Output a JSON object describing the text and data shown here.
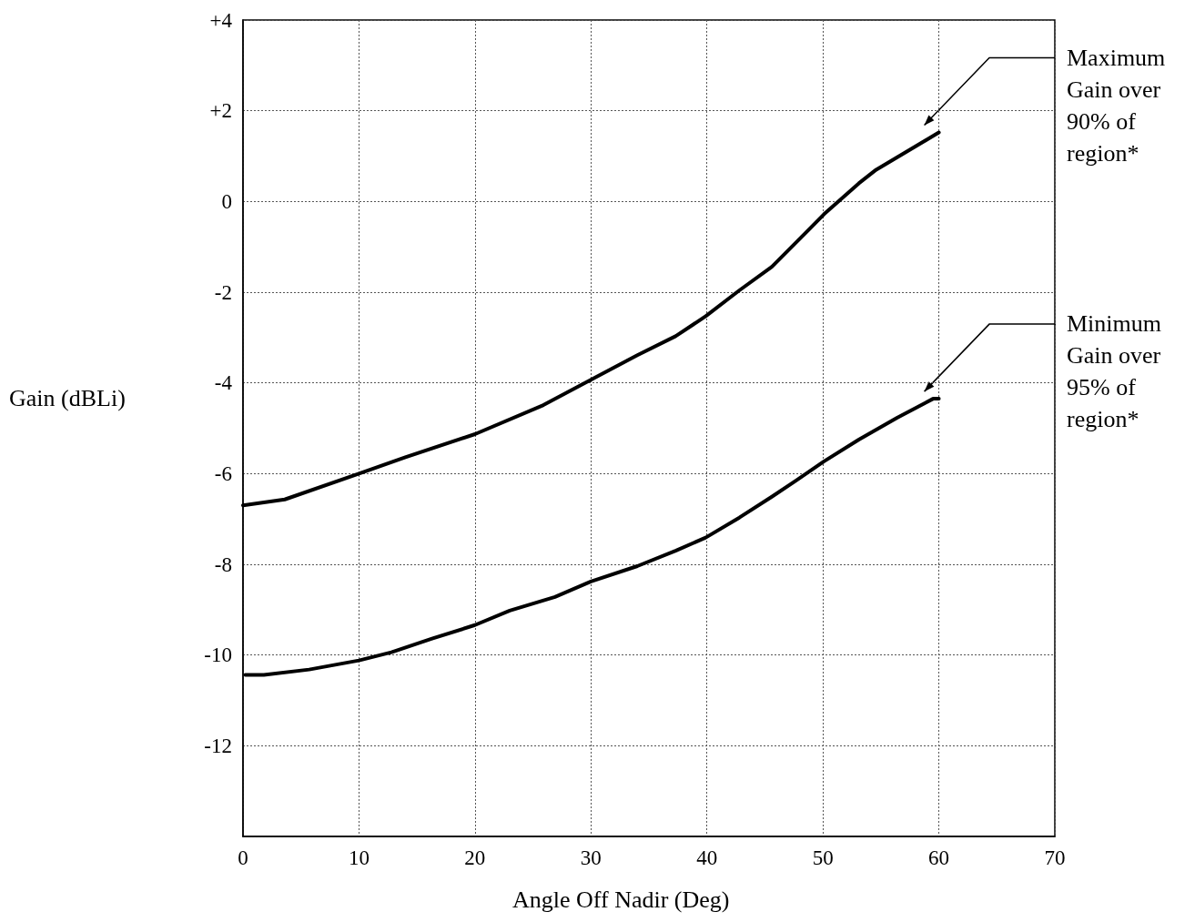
{
  "chart_data": {
    "type": "line",
    "xlabel": "Angle Off Nadir (Deg)",
    "ylabel": "Gain (dBLi)",
    "xlim": [
      0,
      70
    ],
    "xticks": [
      0,
      10,
      20,
      30,
      40,
      50,
      60,
      70
    ],
    "ylim": [
      -14,
      4
    ],
    "yticks": [
      {
        "value": -14,
        "label": null
      },
      -12,
      -10,
      -8,
      -6,
      -4,
      -2,
      0,
      {
        "value": 2,
        "label": "+2"
      },
      {
        "value": 4,
        "label": "+4"
      }
    ],
    "grid": true,
    "marker": "none",
    "line_style": "solid",
    "series": [
      {
        "color": "#000000",
        "x": [
          0,
          3.6,
          10,
          14,
          20,
          25.9,
          30,
          34,
          37.3,
          39.9,
          42.8,
          45.6,
          48.1,
          50.1,
          53.1,
          54.6,
          60
        ],
        "values": [
          -6.7,
          -6.57,
          -6.0,
          -5.64,
          -5.13,
          -4.49,
          -3.93,
          -3.39,
          -2.97,
          -2.53,
          -1.96,
          -1.44,
          -0.8,
          -0.28,
          0.4,
          0.7,
          1.52
        ]
      },
      {
        "color": "#000000",
        "x": [
          0.2,
          1.8,
          5.7,
          10,
          12.8,
          16.3,
          20,
          23,
          26.9,
          30,
          34,
          37.3,
          39.9,
          42.8,
          45.6,
          47.7,
          50.1,
          53.1,
          56.4,
          59.5,
          60
        ],
        "values": [
          -10.44,
          -10.44,
          -10.32,
          -10.12,
          -9.94,
          -9.64,
          -9.34,
          -9.02,
          -8.72,
          -8.38,
          -8.04,
          -7.7,
          -7.41,
          -6.97,
          -6.51,
          -6.15,
          -5.73,
          -5.25,
          -4.77,
          -4.35,
          -4.35
        ]
      }
    ],
    "annotations": [
      "Maximum Gain over 90% of region*",
      "Minimum Gain over 95% of region*"
    ]
  }
}
